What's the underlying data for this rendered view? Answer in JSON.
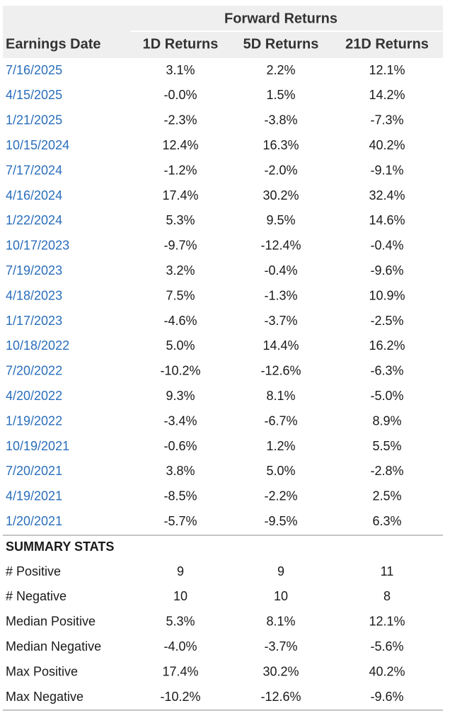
{
  "header": {
    "group": "Forward Returns",
    "columns": [
      "Earnings Date",
      "1D Returns",
      "5D Returns",
      "21D Returns"
    ]
  },
  "table": {
    "rows": [
      [
        "7/16/2025",
        "3.1%",
        "2.2%",
        "12.1%"
      ],
      [
        "4/15/2025",
        "-0.0%",
        "1.5%",
        "14.2%"
      ],
      [
        "1/21/2025",
        "-2.3%",
        "-3.8%",
        "-7.3%"
      ],
      [
        "10/15/2024",
        "12.4%",
        "16.3%",
        "40.2%"
      ],
      [
        "7/17/2024",
        "-1.2%",
        "-2.0%",
        "-9.1%"
      ],
      [
        "4/16/2024",
        "17.4%",
        "30.2%",
        "32.4%"
      ],
      [
        "1/22/2024",
        "5.3%",
        "9.5%",
        "14.6%"
      ],
      [
        "10/17/2023",
        "-9.7%",
        "-12.4%",
        "-0.4%"
      ],
      [
        "7/19/2023",
        "3.2%",
        "-0.4%",
        "-9.6%"
      ],
      [
        "4/18/2023",
        "7.5%",
        "-1.3%",
        "10.9%"
      ],
      [
        "1/17/2023",
        "-4.6%",
        "-3.7%",
        "-2.5%"
      ],
      [
        "10/18/2022",
        "5.0%",
        "14.4%",
        "16.2%"
      ],
      [
        "7/20/2022",
        "-10.2%",
        "-12.6%",
        "-6.3%"
      ],
      [
        "4/20/2022",
        "9.3%",
        "8.1%",
        "-5.0%"
      ],
      [
        "1/19/2022",
        "-3.4%",
        "-6.7%",
        "8.9%"
      ],
      [
        "10/19/2021",
        "-0.6%",
        "1.2%",
        "5.5%"
      ],
      [
        "7/20/2021",
        "3.8%",
        "5.0%",
        "-2.8%"
      ],
      [
        "4/19/2021",
        "-8.5%",
        "-2.2%",
        "2.5%"
      ],
      [
        "1/20/2021",
        "-5.7%",
        "-9.5%",
        "6.3%"
      ]
    ]
  },
  "summary": {
    "title": "SUMMARY STATS",
    "rows": [
      [
        "# Positive",
        "9",
        "9",
        "11"
      ],
      [
        "# Negative",
        "10",
        "10",
        "8"
      ],
      [
        "Median Positive",
        "5.3%",
        "8.1%",
        "12.1%"
      ],
      [
        "Median Negative",
        "-4.0%",
        "-3.7%",
        "-5.6%"
      ],
      [
        "Max Positive",
        "17.4%",
        "30.2%",
        "40.2%"
      ],
      [
        "Max Negative",
        "-10.2%",
        "-12.6%",
        "-9.6%"
      ]
    ]
  }
}
